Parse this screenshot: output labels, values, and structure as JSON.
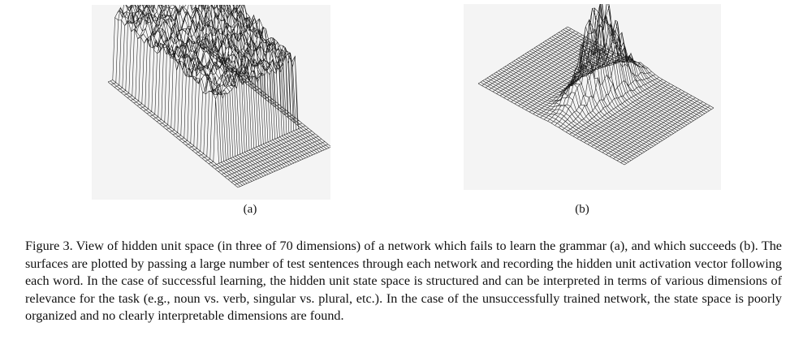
{
  "figure": {
    "panel_a_label": "(a)",
    "panel_b_label": "(b)",
    "caption": "Figure 3.  View of hidden unit space (in three of 70 dimensions) of a network which fails to learn the grammar (a), and which succeeds (b). The surfaces are plotted by passing a large number of test sentences through each network and recording the hidden unit activation vector following each word.  In the case of successful learning, the hidden unit state space is structured and can be interpreted in terms of various dimensions of relevance for the task (e.g., noun vs. verb, singular vs. plural, etc.).  In the case of the unsuccessfully trained network, the state space is poorly organized and no clearly interpretable dimensions are found."
  }
}
